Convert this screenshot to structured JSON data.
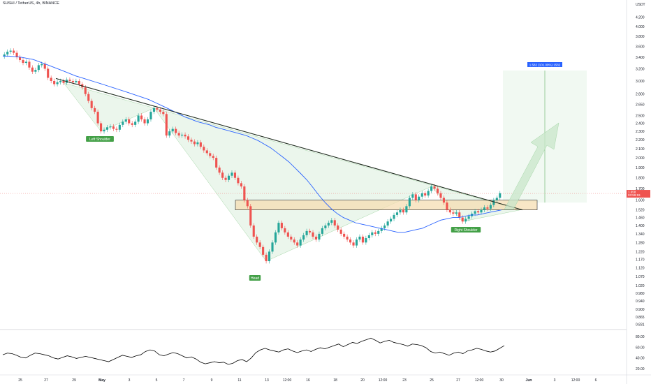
{
  "header": {
    "symbol_title": "SUSHI / TetherUS, 4h, BINANCE",
    "currency": "USDT"
  },
  "colors": {
    "up": "#26a69a",
    "down": "#ef5350",
    "ma": "#2962ff",
    "trendline": "#1f2d1f",
    "zone_fill": "#f5deb3",
    "zone_stroke": "#222222",
    "pattern_fill": "#e8f5e9",
    "label_bg": "#43a047",
    "target_bg": "#2962ff"
  },
  "chart_data": [
    {
      "type": "candlestick",
      "title": "SUSHI / TetherUS, 4h, BINANCE",
      "y_axis": {
        "unit": "USDT",
        "ticks": [
          4.2,
          4.0,
          3.8,
          3.6,
          3.4,
          3.2,
          3.0,
          2.8,
          2.65,
          2.5,
          2.4,
          2.3,
          2.2,
          2.1,
          2.0,
          1.9,
          1.8,
          1.7,
          1.6,
          1.52,
          1.46,
          1.4,
          1.34,
          1.28,
          1.22,
          1.17,
          1.12,
          1.07,
          1.02,
          0.98,
          0.94,
          0.9,
          0.865,
          0.831
        ],
        "tick_labels": [
          "4.200",
          "4.000",
          "3.800",
          "3.600",
          "3.400",
          "3.200",
          "3.000",
          "2.800",
          "2.650",
          "2.500",
          "2.400",
          "2.300",
          "2.200",
          "2.100",
          "2.000",
          "1.900",
          "1.800",
          "1.700",
          "1.600",
          "1.520",
          "1.460",
          "1.400",
          "1.340",
          "1.280",
          "1.220",
          "1.170",
          "1.120",
          "1.070",
          "1.020",
          "0.980",
          "0.940",
          "0.900",
          "0.865",
          "0.831"
        ],
        "scale": "log"
      },
      "x_axis": {
        "tick_labels": [
          "25",
          "27",
          "29",
          "May",
          "3",
          "5",
          "7",
          "9",
          "11",
          "13",
          "12:00",
          "16",
          "18",
          "20",
          "12:00",
          "23",
          "25",
          "27",
          "12:00",
          "30",
          "Jun",
          "3",
          "12:00",
          "6"
        ]
      },
      "last_price": "1.658",
      "last_price_sub": "03:59:19",
      "candles_close": [
        3.45,
        3.5,
        3.52,
        3.48,
        3.4,
        3.35,
        3.3,
        3.32,
        3.22,
        3.15,
        3.18,
        3.26,
        3.28,
        3.2,
        3.05,
        3.0,
        2.95,
        2.98,
        3.0,
        2.97,
        3.02,
        3.0,
        2.98,
        3.0,
        2.95,
        2.9,
        2.8,
        2.7,
        2.6,
        2.55,
        2.4,
        2.3,
        2.32,
        2.35,
        2.36,
        2.33,
        2.32,
        2.38,
        2.42,
        2.45,
        2.4,
        2.38,
        2.42,
        2.5,
        2.45,
        2.4,
        2.45,
        2.55,
        2.6,
        2.58,
        2.55,
        2.52,
        2.25,
        2.3,
        2.33,
        2.28,
        2.25,
        2.26,
        2.24,
        2.2,
        2.18,
        2.15,
        2.17,
        2.12,
        2.08,
        2.05,
        2.02,
        2.0,
        1.9,
        1.85,
        1.8,
        1.78,
        1.82,
        1.85,
        1.8,
        1.75,
        1.72,
        1.6,
        1.55,
        1.4,
        1.32,
        1.28,
        1.25,
        1.2,
        1.16,
        1.22,
        1.28,
        1.35,
        1.42,
        1.38,
        1.35,
        1.32,
        1.3,
        1.28,
        1.26,
        1.3,
        1.33,
        1.36,
        1.35,
        1.32,
        1.3,
        1.34,
        1.38,
        1.4,
        1.42,
        1.44,
        1.4,
        1.37,
        1.34,
        1.32,
        1.3,
        1.28,
        1.26,
        1.3,
        1.32,
        1.28,
        1.31,
        1.33,
        1.35,
        1.34,
        1.36,
        1.38,
        1.4,
        1.43,
        1.45,
        1.48,
        1.5,
        1.52,
        1.5,
        1.55,
        1.62,
        1.65,
        1.6,
        1.63,
        1.66,
        1.64,
        1.68,
        1.72,
        1.7,
        1.66,
        1.62,
        1.58,
        1.52,
        1.5,
        1.49,
        1.5,
        1.46,
        1.43,
        1.45,
        1.47,
        1.49,
        1.51,
        1.5,
        1.52,
        1.54,
        1.53,
        1.56,
        1.6,
        1.62,
        1.66
      ],
      "moving_average": [
        3.42,
        3.42,
        3.41,
        3.4,
        3.38,
        3.36,
        3.32,
        3.28,
        3.24,
        3.2,
        3.16,
        3.12,
        3.08,
        3.05,
        3.02,
        2.99,
        2.96,
        2.93,
        2.9,
        2.87,
        2.84,
        2.81,
        2.78,
        2.75,
        2.72,
        2.68,
        2.64,
        2.6,
        2.56,
        2.52,
        2.48,
        2.45,
        2.42,
        2.4,
        2.38,
        2.35,
        2.33,
        2.31,
        2.29,
        2.27,
        2.25,
        2.22,
        2.19,
        2.15,
        2.11,
        2.06,
        2.01,
        1.96,
        1.9,
        1.84,
        1.78,
        1.71,
        1.64,
        1.58,
        1.53,
        1.49,
        1.46,
        1.44,
        1.42,
        1.41,
        1.4,
        1.39,
        1.38,
        1.37,
        1.36,
        1.35,
        1.35,
        1.36,
        1.37,
        1.38,
        1.4,
        1.42,
        1.44,
        1.45,
        1.46,
        1.46,
        1.47,
        1.48,
        1.48,
        1.49,
        1.5,
        1.51,
        1.52
      ],
      "annotations": {
        "left_shoulder": "Left Shoulder",
        "head": "Head",
        "right_shoulder": "Right Shoulder",
        "target_label": "1.582 (101.09%) 1582"
      },
      "resistance_zone": [
        1.52,
        1.6
      ],
      "neckline": {
        "from": 3.04,
        "to": 1.52
      }
    },
    {
      "type": "line",
      "name": "RSI",
      "y_axis": {
        "ticks": [
          80,
          60,
          40,
          20
        ],
        "tick_labels": [
          "80.00",
          "60.00",
          "40.00",
          "20.00"
        ]
      },
      "values": [
        46,
        49,
        48,
        45,
        41,
        40,
        45,
        49,
        48,
        46,
        44,
        40,
        38,
        41,
        44,
        42,
        39,
        41,
        43,
        41,
        39,
        37,
        35,
        33,
        37,
        41,
        45,
        43,
        41,
        44,
        46,
        52,
        55,
        53,
        46,
        44,
        47,
        50,
        48,
        44,
        40,
        42,
        38,
        32,
        29,
        31,
        33,
        31,
        32,
        28,
        30,
        35,
        37,
        33,
        40,
        50,
        55,
        58,
        55,
        53,
        51,
        55,
        57,
        53,
        50,
        53,
        55,
        52,
        56,
        59,
        57,
        60,
        63,
        66,
        61,
        65,
        69,
        67,
        71,
        74,
        77,
        73,
        68,
        71,
        73,
        69,
        67,
        65,
        62,
        66,
        65,
        63,
        59,
        52,
        49,
        51,
        48,
        45,
        49,
        51,
        48,
        53,
        55,
        58,
        56,
        53,
        51,
        53,
        58,
        63
      ]
    }
  ]
}
